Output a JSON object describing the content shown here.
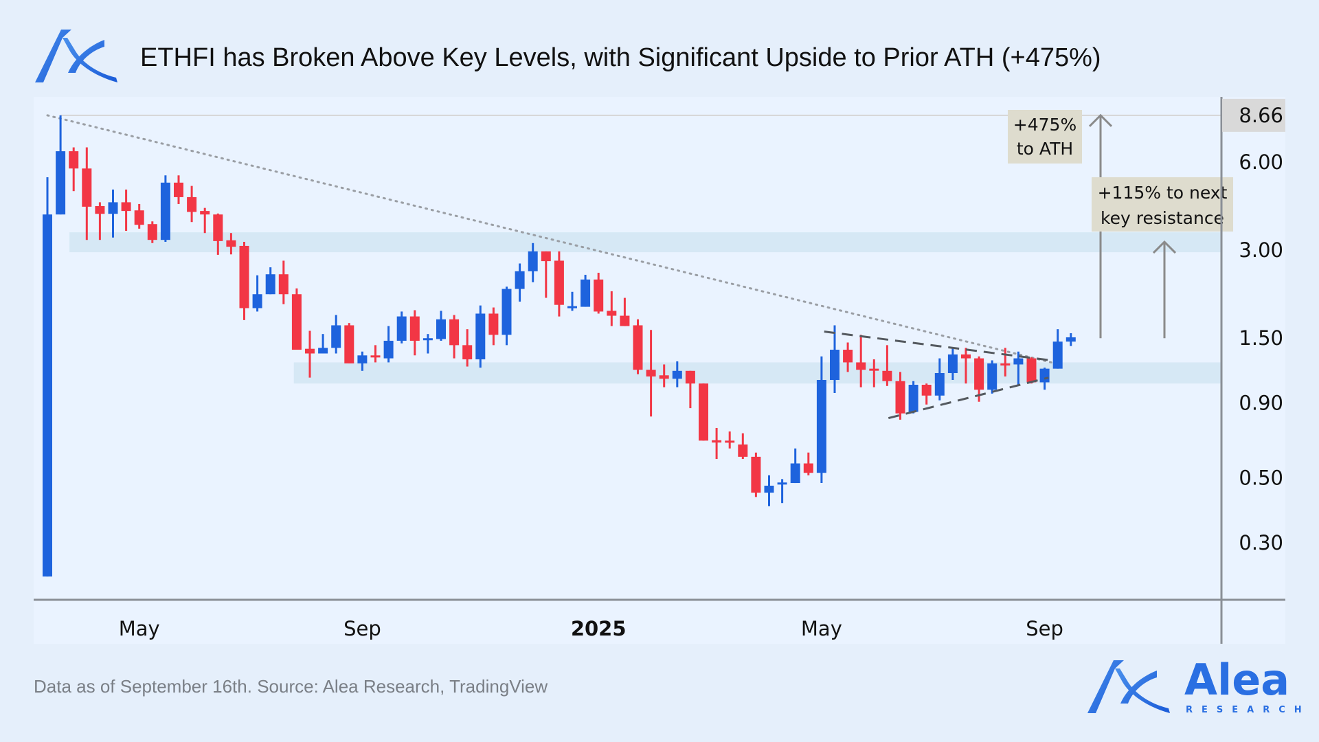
{
  "header": {
    "title": "ETHFI has Broken Above Key Levels, with Significant Upside to Prior ATH (+475%)",
    "logo_name": "Alea Research"
  },
  "footer": {
    "source": "Data as of September 16th. Source: Alea Research, TradingView",
    "brand": "Alea",
    "brand_sub": "RESEARCH"
  },
  "colors": {
    "up": "#1e63dd",
    "down": "#f23645",
    "accent": "#2a6fe2",
    "zone": "#d6e8f5"
  },
  "chart_data": {
    "type": "candlestick",
    "title": "ETHFI has Broken Above Key Levels, with Significant Upside to Prior ATH (+475%)",
    "scale": "log",
    "ylim": [
      0.18,
      9.6
    ],
    "y_ticks": [
      "8.66",
      "6.00",
      "3.00",
      "1.50",
      "0.90",
      "0.50",
      "0.30"
    ],
    "y_tick_values": [
      8.66,
      6.0,
      3.0,
      1.5,
      0.9,
      0.5,
      0.3
    ],
    "highlighted_tick": "8.66",
    "x_ticks": [
      {
        "label": "May",
        "index": 7,
        "bold": false
      },
      {
        "label": "Sep",
        "index": 24,
        "bold": false
      },
      {
        "label": "2025",
        "index": 42,
        "bold": true
      },
      {
        "label": "May",
        "index": 59,
        "bold": false
      },
      {
        "label": "Sep",
        "index": 76,
        "bold": false
      }
    ],
    "interval": "weekly",
    "candles_ohlc": [
      [
        0.23,
        5.32,
        0.23,
        3.97
      ],
      [
        3.97,
        8.66,
        3.97,
        6.53
      ],
      [
        6.53,
        6.73,
        4.77,
        5.7
      ],
      [
        5.7,
        6.73,
        3.25,
        4.22
      ],
      [
        4.24,
        4.37,
        3.25,
        3.99
      ],
      [
        3.99,
        4.83,
        3.31,
        4.37
      ],
      [
        4.37,
        4.83,
        3.49,
        4.08
      ],
      [
        4.1,
        4.31,
        3.55,
        3.66
      ],
      [
        3.68,
        3.76,
        3.17,
        3.25
      ],
      [
        3.25,
        5.4,
        3.2,
        5.1
      ],
      [
        5.1,
        5.4,
        4.31,
        4.55
      ],
      [
        4.55,
        4.97,
        3.74,
        4.05
      ],
      [
        4.08,
        4.18,
        3.43,
        3.97
      ],
      [
        3.97,
        4.0,
        2.89,
        3.22
      ],
      [
        3.24,
        3.43,
        2.9,
        3.08
      ],
      [
        3.1,
        3.2,
        1.73,
        1.9
      ],
      [
        1.9,
        2.46,
        1.85,
        2.12
      ],
      [
        2.12,
        2.62,
        2.12,
        2.48
      ],
      [
        2.48,
        2.76,
        1.96,
        2.12
      ],
      [
        2.12,
        2.22,
        1.37,
        1.37
      ],
      [
        1.38,
        1.59,
        1.1,
        1.33
      ],
      [
        1.33,
        1.55,
        1.33,
        1.39
      ],
      [
        1.39,
        1.8,
        1.33,
        1.66
      ],
      [
        1.66,
        1.69,
        1.23,
        1.23
      ],
      [
        1.23,
        1.35,
        1.16,
        1.31
      ],
      [
        1.31,
        1.42,
        1.24,
        1.3
      ],
      [
        1.28,
        1.65,
        1.24,
        1.47
      ],
      [
        1.47,
        1.85,
        1.44,
        1.78
      ],
      [
        1.78,
        1.87,
        1.31,
        1.47
      ],
      [
        1.49,
        1.55,
        1.33,
        1.5
      ],
      [
        1.49,
        1.86,
        1.47,
        1.74
      ],
      [
        1.74,
        1.8,
        1.28,
        1.42
      ],
      [
        1.42,
        1.61,
        1.2,
        1.27
      ],
      [
        1.27,
        1.94,
        1.19,
        1.82
      ],
      [
        1.82,
        1.91,
        1.42,
        1.54
      ],
      [
        1.54,
        2.25,
        1.42,
        2.21
      ],
      [
        2.21,
        2.7,
        2.0,
        2.54
      ],
      [
        2.54,
        3.17,
        2.33,
        2.97
      ],
      [
        2.97,
        2.97,
        2.06,
        2.75
      ],
      [
        2.76,
        2.97,
        1.78,
        1.95
      ],
      [
        1.92,
        2.16,
        1.86,
        1.93
      ],
      [
        1.92,
        2.47,
        1.92,
        2.38
      ],
      [
        2.38,
        2.51,
        1.82,
        1.85
      ],
      [
        1.86,
        2.17,
        1.65,
        1.79
      ],
      [
        1.79,
        2.06,
        1.65,
        1.65
      ],
      [
        1.66,
        1.74,
        1.13,
        1.17
      ],
      [
        1.17,
        1.6,
        0.81,
        1.11
      ],
      [
        1.12,
        1.22,
        1.02,
        1.09
      ],
      [
        1.09,
        1.25,
        1.02,
        1.16
      ],
      [
        1.16,
        1.16,
        0.865,
        1.05
      ],
      [
        1.05,
        1.05,
        0.67,
        0.67
      ],
      [
        0.672,
        0.74,
        0.58,
        0.66
      ],
      [
        0.67,
        0.72,
        0.63,
        0.66
      ],
      [
        0.65,
        0.71,
        0.58,
        0.59
      ],
      [
        0.59,
        0.61,
        0.43,
        0.445
      ],
      [
        0.445,
        0.51,
        0.4,
        0.47
      ],
      [
        0.48,
        0.495,
        0.41,
        0.482
      ],
      [
        0.48,
        0.63,
        0.48,
        0.56
      ],
      [
        0.56,
        0.61,
        0.51,
        0.52
      ],
      [
        0.52,
        1.3,
        0.48,
        1.08
      ],
      [
        1.08,
        1.66,
        0.975,
        1.37
      ],
      [
        1.37,
        1.45,
        1.15,
        1.24
      ],
      [
        1.24,
        1.54,
        1.02,
        1.17
      ],
      [
        1.18,
        1.27,
        1.02,
        1.17
      ],
      [
        1.16,
        1.42,
        1.03,
        1.07
      ],
      [
        1.07,
        1.15,
        0.79,
        0.83
      ],
      [
        0.84,
        1.07,
        0.83,
        1.04
      ],
      [
        1.04,
        1.05,
        0.89,
        0.955
      ],
      [
        0.955,
        1.28,
        0.92,
        1.14
      ],
      [
        1.14,
        1.39,
        1.08,
        1.32
      ],
      [
        1.32,
        1.39,
        1.05,
        1.28
      ],
      [
        1.28,
        1.3,
        0.91,
        1.0
      ],
      [
        1.0,
        1.26,
        0.97,
        1.23
      ],
      [
        1.23,
        1.39,
        1.11,
        1.22
      ],
      [
        1.22,
        1.35,
        1.04,
        1.28
      ],
      [
        1.28,
        1.29,
        1.05,
        1.06
      ],
      [
        1.06,
        1.19,
        1.0,
        1.18
      ],
      [
        1.18,
        1.61,
        1.18,
        1.46
      ],
      [
        1.46,
        1.56,
        1.41,
        1.51
      ]
    ],
    "ath_price": 8.66,
    "zones": [
      {
        "name": "upper-resistance",
        "from_index": 2.1,
        "price_low": 2.95,
        "price_high": 3.45
      },
      {
        "name": "lower-support",
        "from_index": 19.2,
        "price_low": 1.05,
        "price_high": 1.24
      }
    ],
    "trendlines": [
      {
        "name": "descending-trendline",
        "style": "dotted",
        "from": [
          1,
          8.66
        ],
        "to": [
          77.5,
          1.24
        ]
      },
      {
        "name": "triangle-upper",
        "style": "dashed",
        "from": [
          60.2,
          1.58
        ],
        "to": [
          77.5,
          1.26
        ]
      },
      {
        "name": "triangle-lower",
        "style": "dashed",
        "from": [
          65.1,
          0.8
        ],
        "to": [
          77.3,
          1.1
        ]
      }
    ],
    "annotations": [
      {
        "line1": "+475%",
        "line2": "to ATH",
        "arrow_from": 1.5,
        "arrow_to": 8.66
      },
      {
        "line1": "+115% to next",
        "line2": "key resistance",
        "arrow_from": 1.5,
        "arrow_to": 3.2
      }
    ]
  }
}
